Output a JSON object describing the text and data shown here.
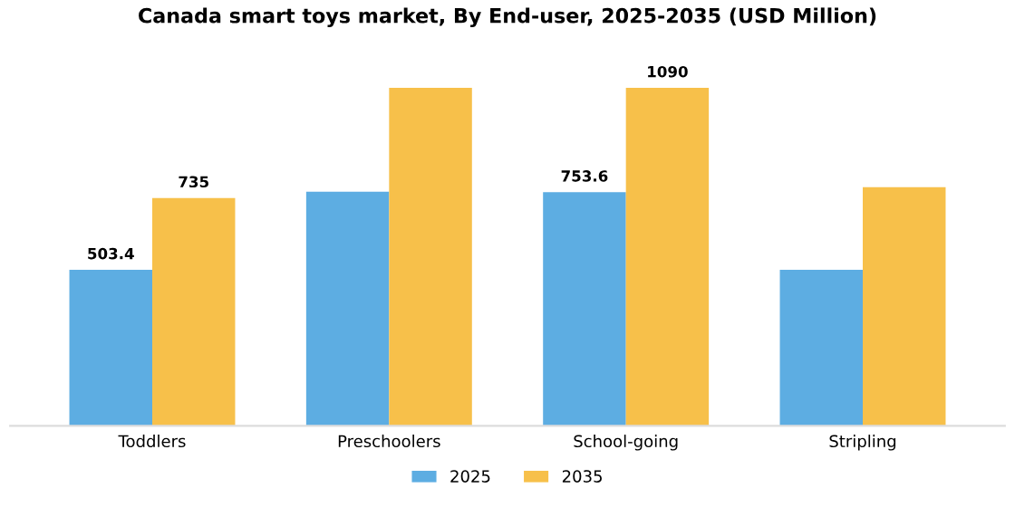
{
  "chart_data": {
    "type": "bar",
    "title": "Canada smart toys market, By End-user, 2025-2035 (USD Million)",
    "categories": [
      "Toddlers",
      "Preschoolers",
      "School-going",
      "Stripling"
    ],
    "series": [
      {
        "name": "2025",
        "color": "#5dade2",
        "values": [
          503.4,
          755,
          753.6,
          503
        ],
        "value_labels": [
          "503.4",
          null,
          "753.6",
          null
        ]
      },
      {
        "name": "2035",
        "color": "#f7c04a",
        "values": [
          735,
          1090,
          1090,
          770
        ],
        "value_labels": [
          "735",
          null,
          "1090",
          null
        ]
      }
    ],
    "legend": "bottom",
    "grid": false
  }
}
